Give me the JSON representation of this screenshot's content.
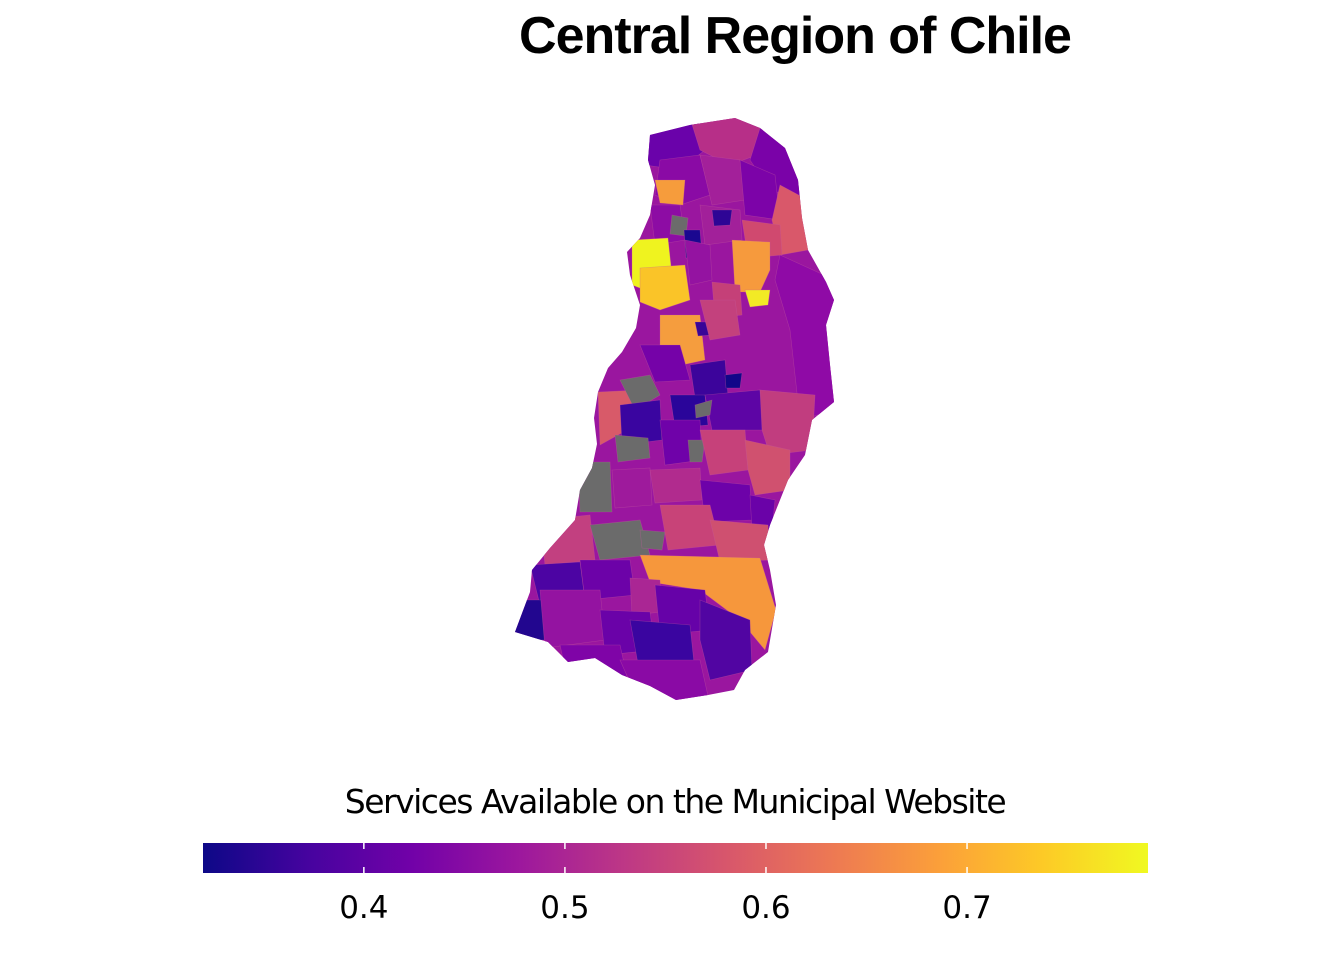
{
  "title": "Central Region of Chile",
  "legend": {
    "title": "Services Available on the Municipal Website",
    "domain": [
      0.32,
      0.79
    ],
    "ticks": [
      0.4,
      0.5,
      0.6,
      0.7
    ],
    "tick_labels": [
      "0.4",
      "0.5",
      "0.6",
      "0.7"
    ],
    "colormap": "plasma",
    "colors": [
      "#0d0887",
      "#46039f",
      "#7201a8",
      "#9c179e",
      "#bd3786",
      "#d8576b",
      "#ed7953",
      "#fb9f3a",
      "#fdca26",
      "#f0f921"
    ],
    "missing_color": "#6b6b6b"
  }
}
